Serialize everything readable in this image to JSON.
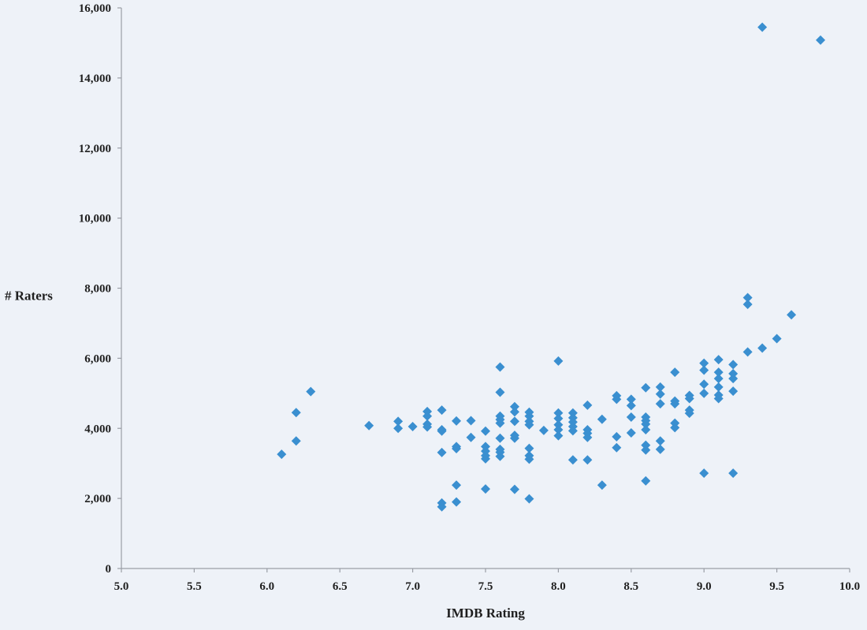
{
  "chart_data": {
    "type": "scatter",
    "title": "",
    "xlabel": "IMDB Rating",
    "ylabel": "# Raters",
    "xlim": [
      5.0,
      10.0
    ],
    "ylim": [
      0,
      16000
    ],
    "x_ticks": [
      "5.0",
      "5.5",
      "6.0",
      "6.5",
      "7.0",
      "7.5",
      "8.0",
      "8.5",
      "9.0",
      "9.5",
      "10.0"
    ],
    "y_ticks": [
      "0",
      "2,000",
      "4,000",
      "6,000",
      "8,000",
      "10,000",
      "12,000",
      "14,000",
      "16,000"
    ],
    "grid": false,
    "legend": "none",
    "marker": "diamond",
    "marker_color": "#3a8fd0",
    "series": [
      {
        "points": [
          [
            6.1,
            3260
          ],
          [
            6.2,
            3640
          ],
          [
            6.2,
            4450
          ],
          [
            6.3,
            5050
          ],
          [
            6.7,
            4080
          ],
          [
            6.9,
            4200
          ],
          [
            6.9,
            4000
          ],
          [
            7.0,
            4050
          ],
          [
            7.1,
            4480
          ],
          [
            7.1,
            4350
          ],
          [
            7.1,
            4120
          ],
          [
            7.1,
            4040
          ],
          [
            7.2,
            4520
          ],
          [
            7.2,
            3960
          ],
          [
            7.2,
            3920
          ],
          [
            7.2,
            3310
          ],
          [
            7.2,
            1870
          ],
          [
            7.2,
            1760
          ],
          [
            7.3,
            4210
          ],
          [
            7.3,
            3480
          ],
          [
            7.3,
            3420
          ],
          [
            7.3,
            2380
          ],
          [
            7.3,
            1900
          ],
          [
            7.4,
            4220
          ],
          [
            7.4,
            3740
          ],
          [
            7.5,
            3920
          ],
          [
            7.5,
            3480
          ],
          [
            7.5,
            3350
          ],
          [
            7.5,
            3220
          ],
          [
            7.5,
            3130
          ],
          [
            7.5,
            2270
          ],
          [
            7.6,
            5750
          ],
          [
            7.6,
            5030
          ],
          [
            7.6,
            4350
          ],
          [
            7.6,
            4250
          ],
          [
            7.6,
            4150
          ],
          [
            7.6,
            3720
          ],
          [
            7.6,
            3400
          ],
          [
            7.6,
            3320
          ],
          [
            7.6,
            3200
          ],
          [
            7.7,
            4620
          ],
          [
            7.7,
            4470
          ],
          [
            7.7,
            4200
          ],
          [
            7.7,
            3800
          ],
          [
            7.7,
            3720
          ],
          [
            7.7,
            2260
          ],
          [
            7.8,
            4460
          ],
          [
            7.8,
            4350
          ],
          [
            7.8,
            4200
          ],
          [
            7.8,
            4100
          ],
          [
            7.8,
            3430
          ],
          [
            7.8,
            3220
          ],
          [
            7.8,
            3120
          ],
          [
            7.8,
            1990
          ],
          [
            7.9,
            3940
          ],
          [
            8.0,
            5920
          ],
          [
            8.0,
            4440
          ],
          [
            8.0,
            4280
          ],
          [
            8.0,
            4100
          ],
          [
            8.0,
            3960
          ],
          [
            8.0,
            3790
          ],
          [
            8.1,
            4440
          ],
          [
            8.1,
            4300
          ],
          [
            8.1,
            4180
          ],
          [
            8.1,
            4050
          ],
          [
            8.1,
            3930
          ],
          [
            8.1,
            3100
          ],
          [
            8.2,
            4660
          ],
          [
            8.2,
            3960
          ],
          [
            8.2,
            3860
          ],
          [
            8.2,
            3740
          ],
          [
            8.2,
            3100
          ],
          [
            8.3,
            4260
          ],
          [
            8.3,
            2380
          ],
          [
            8.4,
            4930
          ],
          [
            8.4,
            4830
          ],
          [
            8.4,
            3760
          ],
          [
            8.4,
            3450
          ],
          [
            8.5,
            4830
          ],
          [
            8.5,
            4650
          ],
          [
            8.5,
            4320
          ],
          [
            8.5,
            3870
          ],
          [
            8.6,
            5160
          ],
          [
            8.6,
            4320
          ],
          [
            8.6,
            4220
          ],
          [
            8.6,
            4120
          ],
          [
            8.6,
            3960
          ],
          [
            8.6,
            3520
          ],
          [
            8.6,
            3380
          ],
          [
            8.6,
            2500
          ],
          [
            8.7,
            5180
          ],
          [
            8.7,
            4980
          ],
          [
            8.7,
            4700
          ],
          [
            8.7,
            3640
          ],
          [
            8.7,
            3400
          ],
          [
            8.8,
            5600
          ],
          [
            8.8,
            4780
          ],
          [
            8.8,
            4700
          ],
          [
            8.8,
            4150
          ],
          [
            8.8,
            4020
          ],
          [
            8.9,
            4940
          ],
          [
            8.9,
            4850
          ],
          [
            8.9,
            4520
          ],
          [
            8.9,
            4430
          ],
          [
            9.0,
            5860
          ],
          [
            9.0,
            5660
          ],
          [
            9.0,
            5260
          ],
          [
            9.0,
            5000
          ],
          [
            9.0,
            2720
          ],
          [
            9.1,
            5960
          ],
          [
            9.1,
            5600
          ],
          [
            9.1,
            5420
          ],
          [
            9.1,
            5180
          ],
          [
            9.1,
            4950
          ],
          [
            9.1,
            4850
          ],
          [
            9.2,
            5820
          ],
          [
            9.2,
            5560
          ],
          [
            9.2,
            5420
          ],
          [
            9.2,
            5060
          ],
          [
            9.2,
            2720
          ],
          [
            9.3,
            7730
          ],
          [
            9.3,
            7540
          ],
          [
            9.3,
            6180
          ],
          [
            9.4,
            15450
          ],
          [
            9.4,
            6290
          ],
          [
            9.5,
            6560
          ],
          [
            9.6,
            7240
          ],
          [
            9.8,
            15080
          ]
        ]
      }
    ]
  }
}
